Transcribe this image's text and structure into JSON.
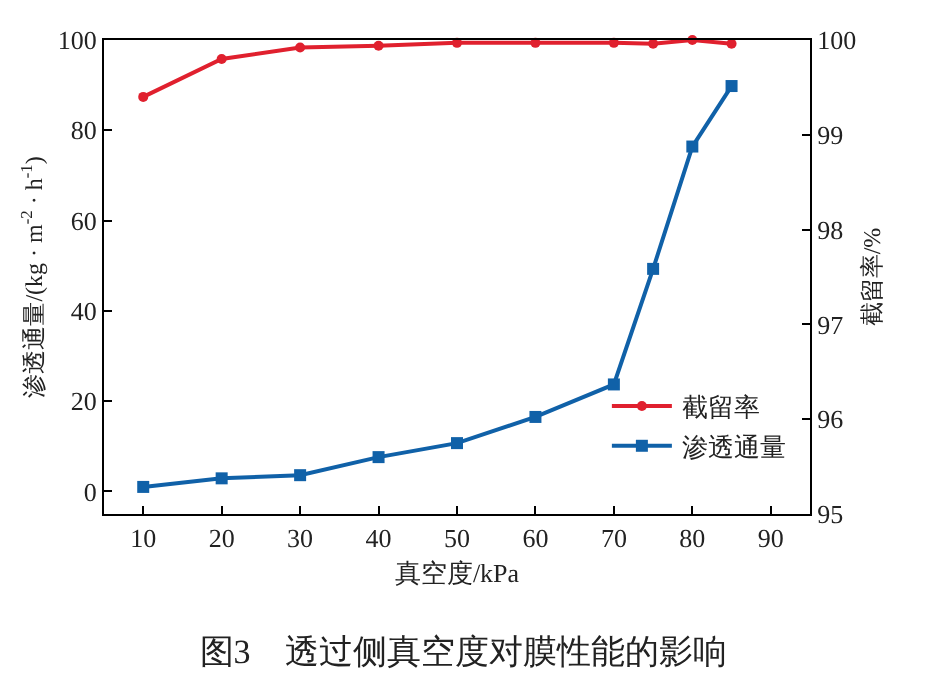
{
  "chart_data": {
    "type": "line",
    "title": "图3　透过侧真空度对膜性能的影响",
    "xlabel": "真空度/kPa",
    "ylabel": "渗透通量/(kg · m$^{-2}$ · h$^{-1}$)",
    "y2label": "截留率/%",
    "x": [
      10,
      20,
      30,
      40,
      50,
      60,
      70,
      75,
      80,
      85
    ],
    "series": [
      {
        "name": "截留率",
        "color": "#e0202e",
        "axis": "y2",
        "marker": "circle",
        "values": [
          99.4,
          99.8,
          99.92,
          99.94,
          99.97,
          99.97,
          99.97,
          99.96,
          100,
          99.96
        ]
      },
      {
        "name": "渗透通量",
        "color": "#1061a8",
        "marker": "square",
        "values": [
          1.0,
          2.9,
          3.6,
          7.6,
          10.7,
          16.5,
          23.7,
          49.3,
          76.4,
          89.8
        ]
      }
    ],
    "xlim": [
      5,
      95
    ],
    "xticks": [
      10,
      20,
      30,
      40,
      50,
      60,
      70,
      80,
      90
    ],
    "ylim": [
      -5,
      100
    ],
    "yticks": [
      0,
      20,
      40,
      60,
      80,
      100
    ],
    "y2lim": [
      95,
      100
    ],
    "y2ticks": [
      95,
      96,
      97,
      98,
      99,
      100
    ],
    "grid": false,
    "legend": "bottom right",
    "line_style": "solid"
  }
}
